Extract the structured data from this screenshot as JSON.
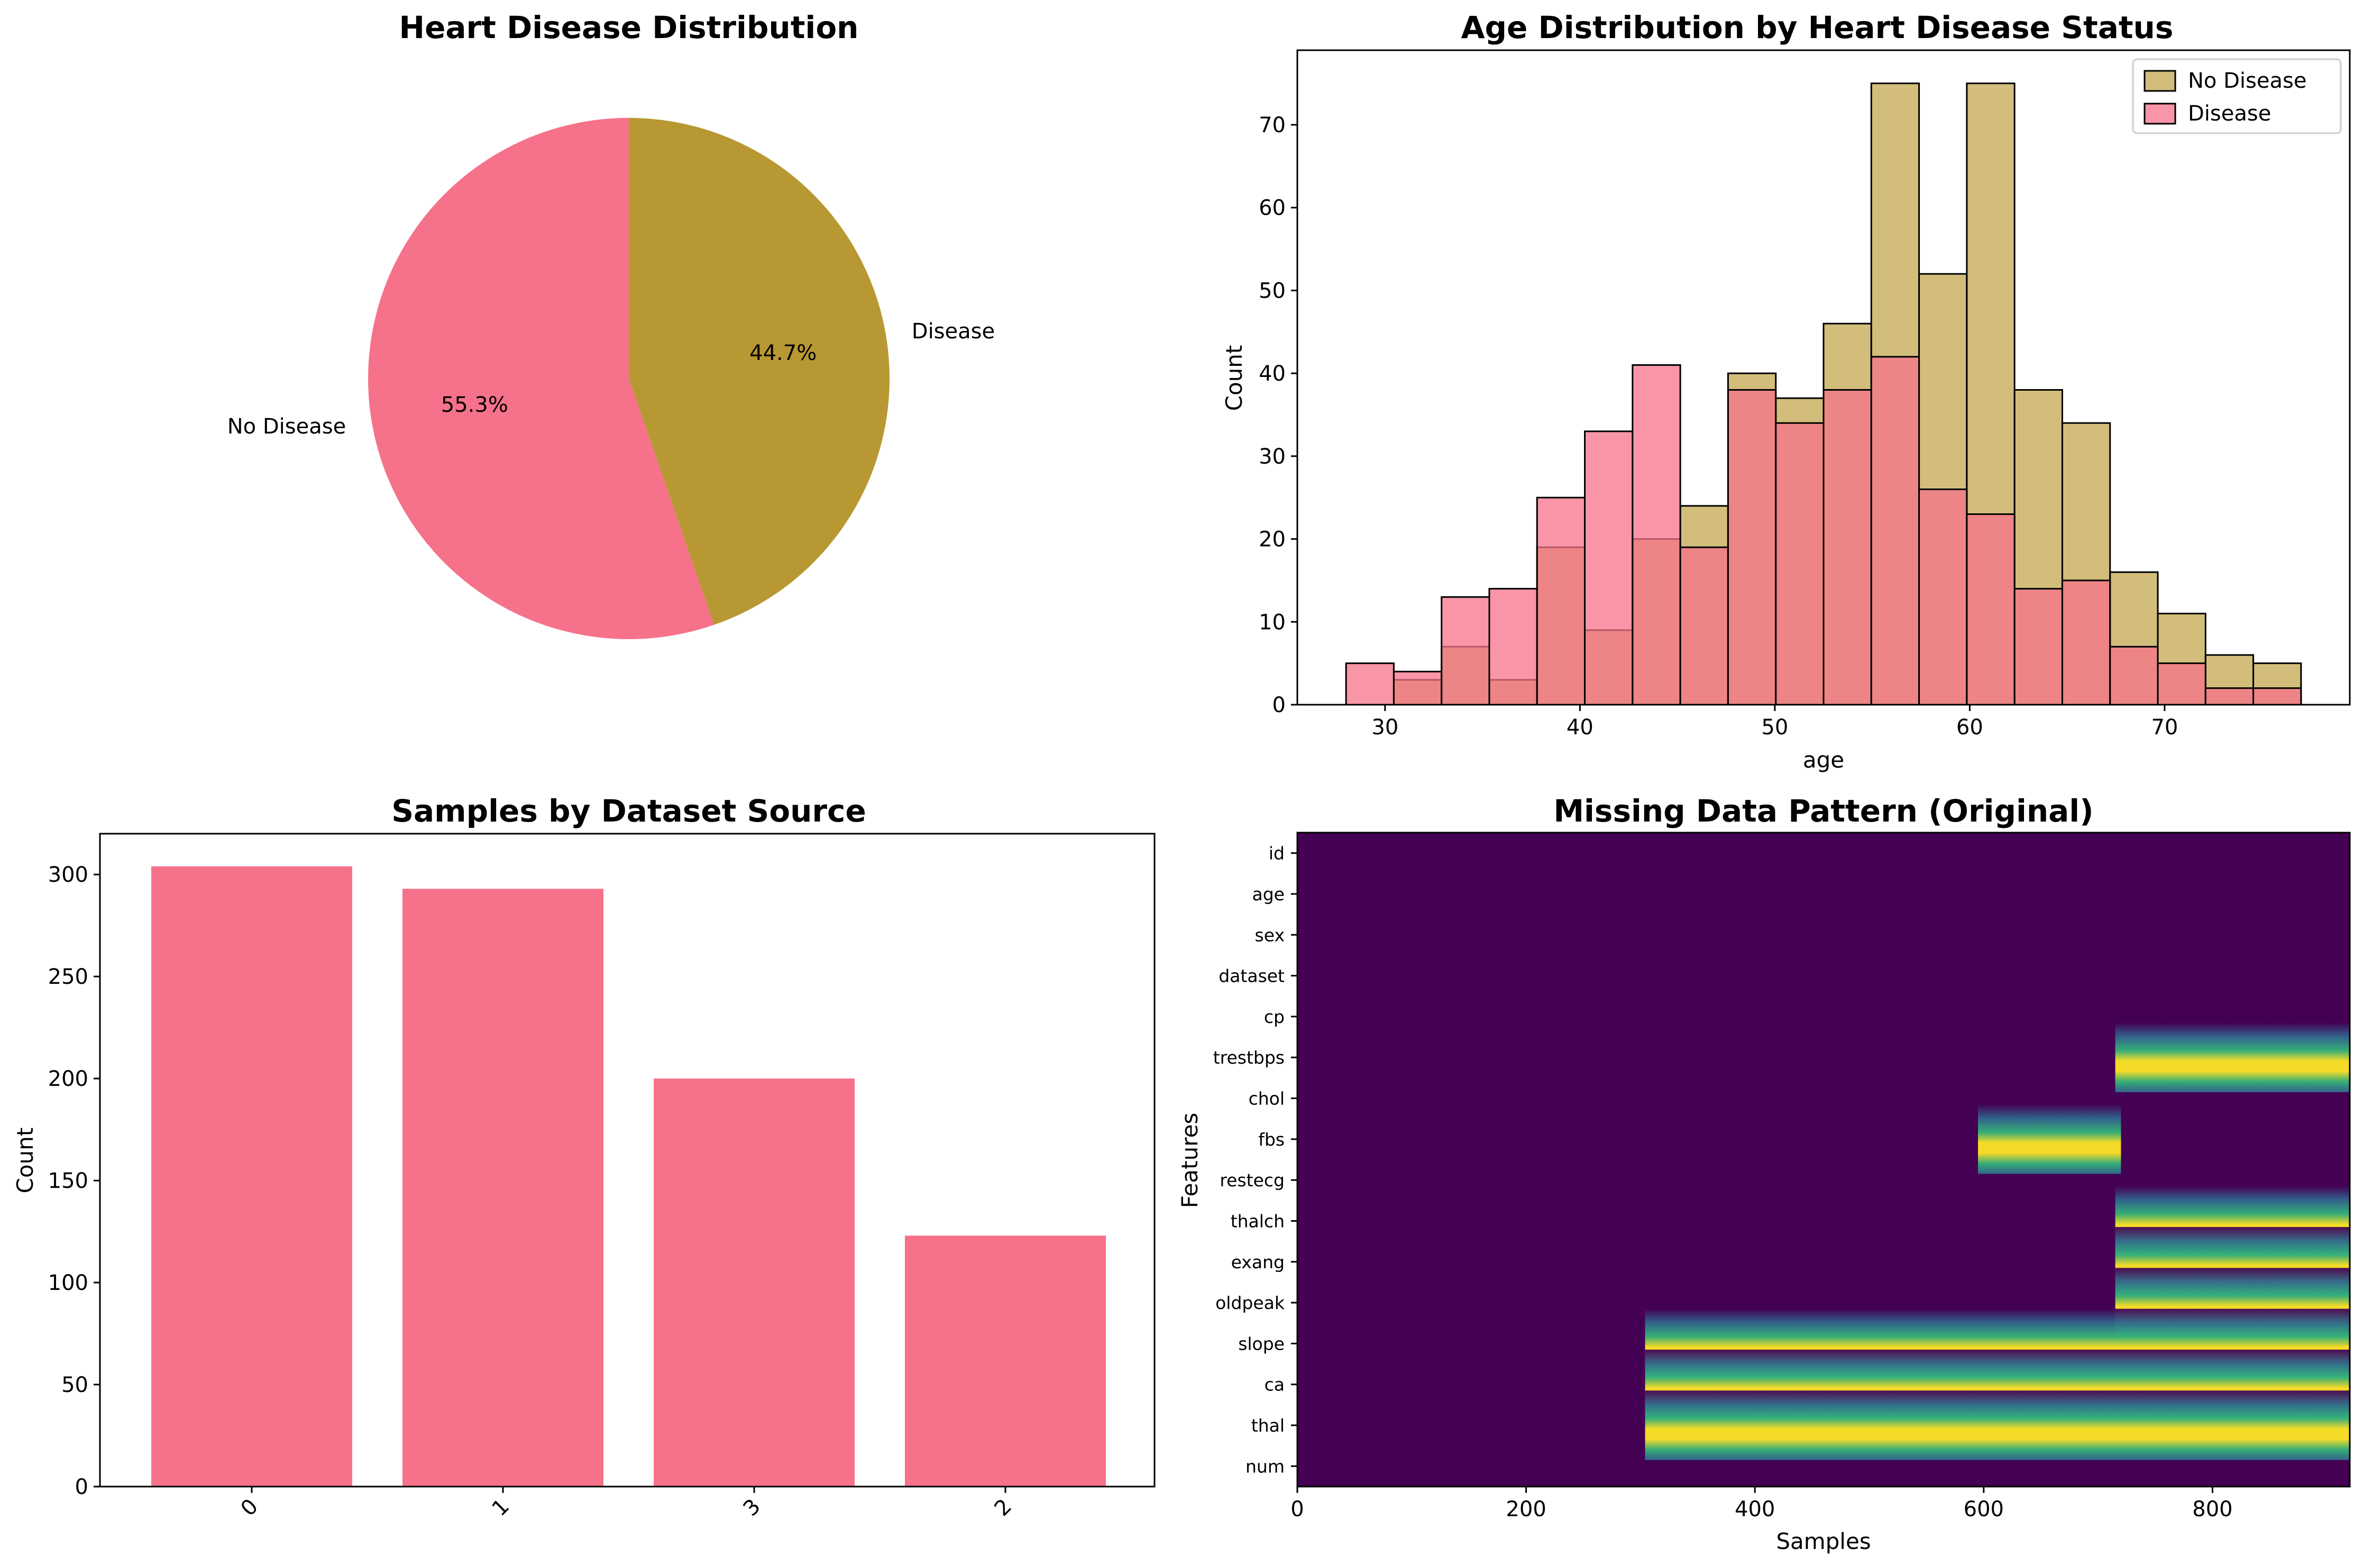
{
  "chart_data": [
    {
      "type": "pie",
      "title": "Heart Disease Distribution",
      "labels": [
        "No Disease",
        "Disease"
      ],
      "values": [
        55.3,
        44.7
      ],
      "autopct": [
        "55.3%",
        "44.7%"
      ],
      "start_angle_deg": 90,
      "colors": [
        "#f5728a",
        "#b89832"
      ]
    },
    {
      "type": "bar",
      "subtype": "overlaid-histogram",
      "title": "Age Distribution by Heart Disease Status",
      "xlabel": "age",
      "ylabel": "Count",
      "xlim": [
        25.5,
        79.5
      ],
      "ylim": [
        0,
        79
      ],
      "xticks": [
        30,
        40,
        50,
        60,
        70
      ],
      "yticks": [
        0,
        10,
        20,
        30,
        40,
        50,
        60,
        70
      ],
      "bin_edges": [
        28,
        30.45,
        32.9,
        35.35,
        37.8,
        40.25,
        42.7,
        45.15,
        47.6,
        50.05,
        52.5,
        54.95,
        57.4,
        59.85,
        62.3,
        64.75,
        67.2,
        69.65,
        72.1,
        74.55,
        77
      ],
      "series": [
        {
          "name": "No Disease",
          "color": "#c4a74f",
          "values": [
            0,
            3,
            7,
            3,
            19,
            9,
            20,
            24,
            40,
            37,
            46,
            75,
            52,
            75,
            38,
            34,
            16,
            11,
            6,
            5
          ]
        },
        {
          "name": "Disease",
          "color": "#f5728a",
          "values": [
            5,
            4,
            13,
            14,
            25,
            33,
            41,
            19,
            38,
            34,
            38,
            42,
            26,
            23,
            14,
            15,
            7,
            5,
            2,
            2
          ]
        }
      ],
      "legend": "top-right"
    },
    {
      "type": "bar",
      "title": "Samples by Dataset Source",
      "ylabel": "Count",
      "xlabel": "",
      "categories": [
        "0",
        "1",
        "3",
        "2"
      ],
      "values": [
        304,
        293,
        200,
        123
      ],
      "ylim": [
        0,
        320
      ],
      "yticks": [
        0,
        50,
        100,
        150,
        200,
        250,
        300
      ],
      "color": "#f5728a",
      "xtick_rotation_deg": 45
    },
    {
      "type": "heatmap",
      "title": "Missing Data Pattern (Original)",
      "xlabel": "Samples",
      "ylabel": "Features",
      "xlim": [
        0,
        920
      ],
      "xticks": [
        0,
        200,
        400,
        600,
        800
      ],
      "features": [
        "id",
        "age",
        "sex",
        "dataset",
        "cp",
        "trestbps",
        "chol",
        "fbs",
        "restecg",
        "thalch",
        "exang",
        "oldpeak",
        "slope",
        "ca",
        "thal",
        "num"
      ],
      "colormap": "viridis",
      "missing_ranges": {
        "trestbps": [
          [
            715,
            920
          ]
        ],
        "fbs": [
          [
            595,
            720
          ]
        ],
        "thalch": [
          [
            715,
            920
          ]
        ],
        "exang": [
          [
            715,
            920
          ]
        ],
        "oldpeak": [
          [
            715,
            920
          ]
        ],
        "slope": [
          [
            304,
            920
          ]
        ],
        "ca": [
          [
            304,
            920
          ]
        ],
        "thal": [
          [
            304,
            920
          ]
        ]
      },
      "colors": {
        "present": "#440154",
        "missing": "#fde725"
      }
    }
  ]
}
